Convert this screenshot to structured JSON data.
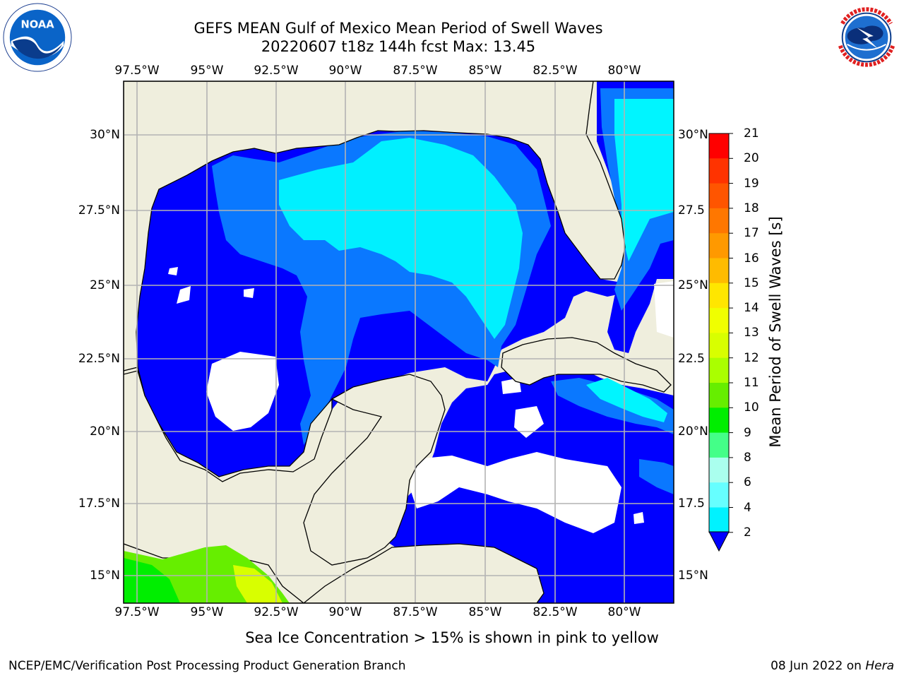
{
  "title": {
    "line1": "GEFS MEAN Gulf of Mexico Mean Period of Swell Waves",
    "line2": "20220607 t18z 144h fcst   Max: 13.45"
  },
  "axes": {
    "longitude_labels": [
      "97.5°W",
      "95°W",
      "92.5°W",
      "90°W",
      "87.5°W",
      "85°W",
      "82.5°W",
      "80°W"
    ],
    "latitude_labels": [
      "30°N",
      "27.5°N",
      "25°N",
      "22.5°N",
      "20°N",
      "17.5°N",
      "15°N"
    ],
    "right_latitude_labels": [
      "30°N",
      "27.5",
      "25°N",
      "22.5",
      "20°N",
      "17.5",
      "15°N"
    ]
  },
  "colorbar": {
    "label": "Mean Period of Swell Waves [s]",
    "ticks": [
      "21",
      "20",
      "19",
      "18",
      "17",
      "16",
      "15",
      "14",
      "13",
      "12",
      "11",
      "10",
      "9",
      "8",
      "6",
      "4",
      "2"
    ],
    "colors": [
      "#ff0000",
      "#ff3300",
      "#ff5500",
      "#ff7700",
      "#ff9900",
      "#ffbb00",
      "#ffe600",
      "#f0ff00",
      "#d8ff00",
      "#aaff00",
      "#66ee00",
      "#00ee00",
      "#44ff88",
      "#aaffee",
      "#66ffff",
      "#00f2ff",
      "#00e8ff",
      "#0077ff"
    ],
    "extend_color": "#0000ff"
  },
  "colors": {
    "land": "#efeedd",
    "deep_blue": "#0000ff",
    "mid_blue": "#0a78ff",
    "cyan": "#00f0ff",
    "light_cyan": "#00f5ff",
    "grid": "#b3b3b3"
  },
  "map_data": {
    "region": "Gulf of Mexico",
    "lon_range": [
      "98W",
      "76.5W"
    ],
    "lat_range": [
      "14N",
      "31.7N"
    ],
    "max_value": 13.45
  },
  "note": "Sea Ice Concentration > 15% is shown in pink to yellow",
  "footer": {
    "left": "NCEP/EMC/Verification Post Processing Product Generation Branch",
    "date": "08 Jun 2022 on ",
    "machine": "Hera"
  },
  "logos": {
    "left_icon": "noaa-logo",
    "right_icon": "nws-logo"
  }
}
